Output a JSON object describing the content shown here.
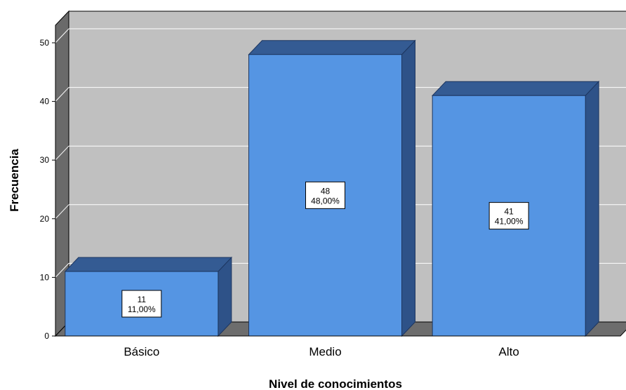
{
  "chart_data": {
    "type": "bar",
    "style": "3d",
    "categories": [
      "Básico",
      "Medio",
      "Alto"
    ],
    "values": [
      11,
      48,
      41
    ],
    "percent_labels": [
      "11,00%",
      "48,00%",
      "41,00%"
    ],
    "xlabel": "Nivel de conocimientos",
    "ylabel": "Frecuencia",
    "ylim": [
      0,
      50
    ],
    "yticks": [
      0,
      10,
      20,
      30,
      40,
      50
    ],
    "grid": true,
    "legend": "none",
    "colors": {
      "bar_front": "#5595e3",
      "bar_top": "#345b93",
      "bar_side": "#2e5288",
      "plot_back": "#c0c0c0",
      "floor": "#6d6d6d",
      "left_wall": "#6a6a6a",
      "grid": "#ffffff"
    }
  }
}
